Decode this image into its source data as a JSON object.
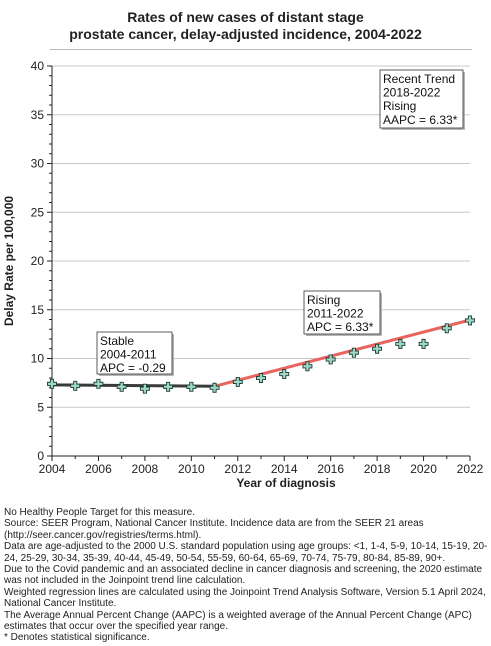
{
  "title_lines": [
    "Rates of new cases of distant stage",
    "prostate cancer, delay-adjusted incidence, 2004-2022"
  ],
  "chart_data": {
    "type": "line",
    "xlabel": "Year of diagnosis",
    "ylabel": "Delay Rate per 100,000",
    "xlim": [
      2004,
      2022
    ],
    "ylim": [
      0,
      40
    ],
    "x_ticks": [
      2004,
      2006,
      2008,
      2010,
      2012,
      2014,
      2016,
      2018,
      2020,
      2022
    ],
    "y_ticks": [
      0,
      5,
      10,
      15,
      20,
      25,
      30,
      35,
      40
    ],
    "grid": "horizontal",
    "observed": {
      "x": [
        2004,
        2005,
        2006,
        2007,
        2008,
        2009,
        2010,
        2011,
        2012,
        2013,
        2014,
        2015,
        2016,
        2017,
        2018,
        2019,
        2020,
        2021,
        2022
      ],
      "y": [
        7.4,
        7.2,
        7.4,
        7.1,
        6.9,
        7.1,
        7.1,
        7.0,
        7.6,
        8.0,
        8.4,
        9.2,
        9.9,
        10.6,
        11.0,
        11.5,
        11.5,
        13.1,
        13.9
      ]
    },
    "segments": [
      {
        "x": [
          2004,
          2011
        ],
        "y": [
          7.3,
          7.15
        ],
        "color": "#3a3a3a"
      },
      {
        "x": [
          2011,
          2022
        ],
        "y": [
          7.15,
          13.95
        ],
        "color": "#e8645f"
      }
    ],
    "annotations": [
      {
        "lines": [
          "Stable",
          "2004-2011",
          "APC = -0.29"
        ]
      },
      {
        "lines": [
          "Rising",
          "2011-2022",
          "APC =  6.33*"
        ]
      },
      {
        "lines": [
          "Recent Trend",
          "2018-2022",
          "Rising",
          "AAPC =  6.33*"
        ]
      }
    ]
  },
  "notes": [
    "No Healthy People Target for this measure.",
    "Source: SEER Program, National Cancer Institute. Incidence data are from the SEER 21 areas (http://seer.cancer.gov/registries/terms.html).",
    "Data are age-adjusted to the 2000 U.S. standard population using age groups: <1, 1-4, 5-9, 10-14, 15-19, 20-24, 25-29, 30-34, 35-39, 40-44, 45-49, 50-54, 55-59, 60-64, 65-69, 70-74, 75-79, 80-84, 85-89, 90+.",
    "Due to the Covid pandemic and an associated decline in cancer diagnosis and screening, the 2020 estimate was not included in the Joinpoint trend line calculation.",
    "Weighted regression lines are calculated using the Joinpoint Trend Analysis Software, Version 5.1 April 2024, National Cancer Institute.",
    "The Average Annual Percent Change (AAPC) is a weighted average of the Annual Percent Change (APC) estimates that occur over the specified year range.",
    "* Denotes statistical significance."
  ],
  "colors": {
    "observed_marker_fill": "#9fd8c6",
    "observed_marker_stroke": "#1b3d35",
    "grid": "#c8c8c8"
  }
}
